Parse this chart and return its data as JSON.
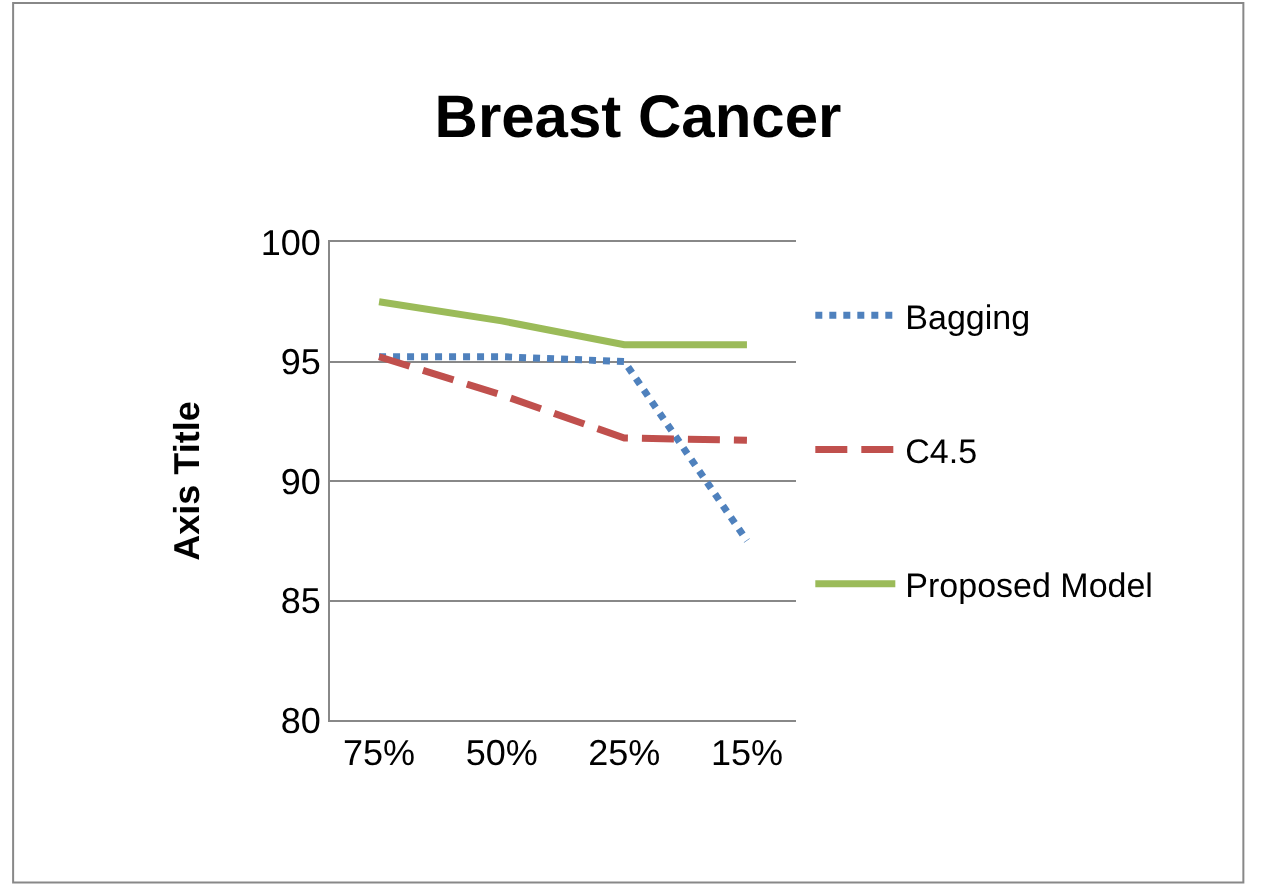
{
  "chart_data": {
    "type": "line",
    "title": "Breast Cancer",
    "ylabel": "Axis Title",
    "categories": [
      "75%",
      "50%",
      "25%",
      "15%"
    ],
    "series": [
      {
        "name": "Bagging",
        "color": "#4f81bd",
        "line_style": "dotted",
        "values": [
          95.2,
          95.2,
          95.0,
          87.5
        ]
      },
      {
        "name": "C4.5",
        "color": "#c0504d",
        "line_style": "dashed",
        "values": [
          95.2,
          93.6,
          91.8,
          91.7
        ]
      },
      {
        "name": "Proposed Model",
        "color": "#9bbb59",
        "line_style": "solid",
        "values": [
          97.5,
          96.7,
          95.7,
          95.7
        ]
      }
    ],
    "ylim": [
      80,
      100
    ],
    "yticks": [
      80,
      85,
      90,
      95,
      100
    ],
    "grid": "y",
    "legend": "right"
  }
}
